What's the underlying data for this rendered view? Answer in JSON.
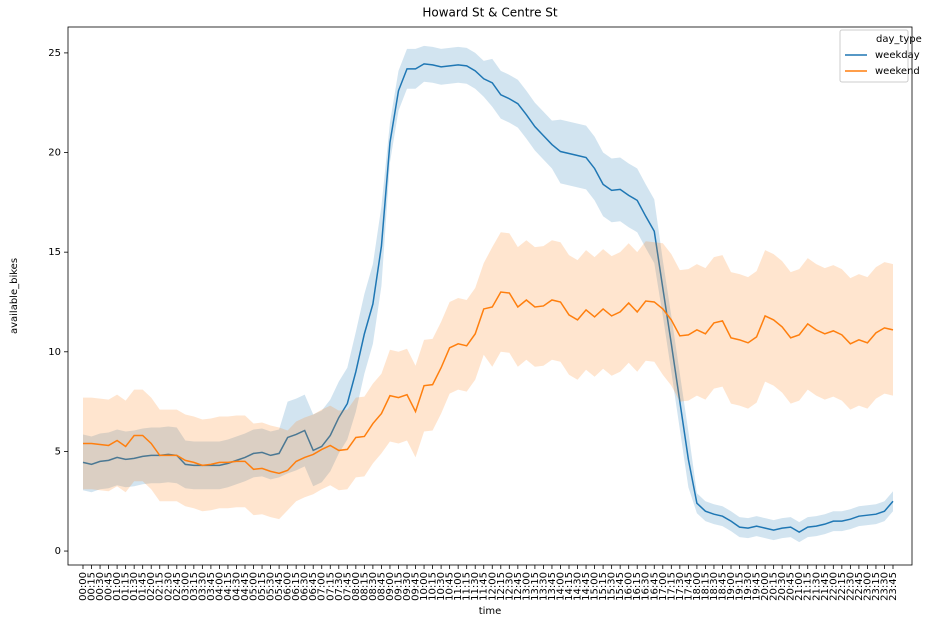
{
  "chart_data": {
    "type": "line",
    "title": "Howard St & Centre St",
    "x_label": "time",
    "y_label": "available_bikes",
    "legend_title": "day_type",
    "legend": "upper right",
    "categories": [
      "00:00",
      "00:15",
      "00:30",
      "00:45",
      "01:00",
      "01:15",
      "01:30",
      "01:45",
      "02:00",
      "02:15",
      "02:30",
      "02:45",
      "03:00",
      "03:15",
      "03:30",
      "03:45",
      "04:00",
      "04:15",
      "04:30",
      "04:45",
      "05:00",
      "05:15",
      "05:30",
      "05:45",
      "06:00",
      "06:15",
      "06:30",
      "06:45",
      "07:00",
      "07:15",
      "07:30",
      "07:45",
      "08:00",
      "08:15",
      "08:30",
      "08:45",
      "09:00",
      "09:15",
      "09:30",
      "09:45",
      "10:00",
      "10:15",
      "10:30",
      "10:45",
      "11:00",
      "11:15",
      "11:30",
      "11:45",
      "12:00",
      "12:15",
      "12:30",
      "12:45",
      "13:00",
      "13:15",
      "13:30",
      "13:45",
      "14:00",
      "14:15",
      "14:30",
      "14:45",
      "15:00",
      "15:15",
      "15:30",
      "15:45",
      "16:00",
      "16:15",
      "16:30",
      "16:45",
      "17:00",
      "17:15",
      "17:30",
      "17:45",
      "18:00",
      "18:15",
      "18:30",
      "18:45",
      "19:00",
      "19:15",
      "19:30",
      "19:45",
      "20:00",
      "20:15",
      "20:30",
      "20:45",
      "21:00",
      "21:15",
      "21:30",
      "21:45",
      "22:00",
      "22:15",
      "22:30",
      "22:45",
      "23:00",
      "23:15",
      "23:30",
      "23:45"
    ],
    "series": [
      {
        "name": "weekday",
        "color": "#1f77b4",
        "values": [
          4.45,
          4.35,
          4.5,
          4.55,
          4.7,
          4.6,
          4.65,
          4.75,
          4.8,
          4.8,
          4.85,
          4.8,
          4.35,
          4.3,
          4.3,
          4.3,
          4.3,
          4.4,
          4.55,
          4.7,
          4.9,
          4.95,
          4.8,
          4.9,
          5.7,
          5.85,
          6.05,
          5.05,
          5.25,
          5.8,
          6.7,
          7.4,
          9.0,
          10.9,
          12.4,
          15.3,
          20.5,
          23.1,
          24.2,
          24.2,
          24.45,
          24.4,
          24.3,
          24.35,
          24.4,
          24.35,
          24.1,
          23.7,
          23.5,
          22.9,
          22.7,
          22.45,
          21.9,
          21.3,
          20.85,
          20.4,
          20.05,
          19.95,
          19.85,
          19.75,
          19.2,
          18.4,
          18.1,
          18.15,
          17.85,
          17.6,
          16.8,
          16.05,
          13.2,
          10.4,
          7.5,
          4.6,
          2.4,
          2.0,
          1.85,
          1.75,
          1.5,
          1.2,
          1.15,
          1.25,
          1.15,
          1.05,
          1.15,
          1.2,
          0.95,
          1.2,
          1.25,
          1.35,
          1.5,
          1.5,
          1.6,
          1.75,
          1.8,
          1.85,
          2.0,
          2.5
        ],
        "lower": [
          3.05,
          2.95,
          3.1,
          3.15,
          3.3,
          3.2,
          3.25,
          3.35,
          3.4,
          3.4,
          3.45,
          3.4,
          3.15,
          3.1,
          3.1,
          3.1,
          3.1,
          3.2,
          3.35,
          3.5,
          3.7,
          3.75,
          3.6,
          3.7,
          3.9,
          4.05,
          4.25,
          3.25,
          3.45,
          4.0,
          4.9,
          5.6,
          7.0,
          8.9,
          10.4,
          13.3,
          19.5,
          22.1,
          23.2,
          23.2,
          23.55,
          23.5,
          23.4,
          23.45,
          23.5,
          23.45,
          23.2,
          22.8,
          22.3,
          21.7,
          21.5,
          21.25,
          20.7,
          20.1,
          19.65,
          19.2,
          18.45,
          18.35,
          18.25,
          18.15,
          17.6,
          16.8,
          16.5,
          16.55,
          16.25,
          16.0,
          15.2,
          14.45,
          11.8,
          9.0,
          6.1,
          3.2,
          1.9,
          1.5,
          1.35,
          1.25,
          1.0,
          0.7,
          0.65,
          0.75,
          0.65,
          0.55,
          0.65,
          0.7,
          0.45,
          0.7,
          0.75,
          0.85,
          1.0,
          1.0,
          1.1,
          1.25,
          1.3,
          1.35,
          1.5,
          2.0
        ],
        "upper": [
          5.85,
          5.75,
          5.9,
          5.95,
          6.1,
          6.0,
          6.05,
          6.15,
          6.2,
          6.2,
          6.25,
          6.2,
          5.55,
          5.5,
          5.5,
          5.5,
          5.5,
          5.6,
          5.75,
          5.9,
          6.1,
          6.15,
          6.0,
          6.1,
          7.5,
          7.65,
          7.85,
          6.85,
          7.05,
          7.6,
          8.5,
          9.2,
          11.0,
          12.9,
          14.4,
          17.3,
          21.5,
          24.1,
          25.2,
          25.2,
          25.35,
          25.3,
          25.2,
          25.25,
          25.3,
          25.25,
          25.0,
          24.6,
          24.7,
          24.1,
          23.9,
          23.65,
          23.1,
          22.5,
          22.05,
          21.6,
          21.65,
          21.55,
          21.45,
          21.35,
          20.8,
          20.0,
          19.7,
          19.75,
          19.45,
          19.2,
          18.4,
          17.65,
          14.6,
          11.8,
          8.9,
          6.0,
          2.9,
          2.5,
          2.35,
          2.25,
          2.0,
          1.7,
          1.65,
          1.75,
          1.65,
          1.55,
          1.65,
          1.7,
          1.45,
          1.7,
          1.75,
          1.85,
          2.0,
          2.0,
          2.1,
          2.25,
          2.3,
          2.35,
          2.5,
          3.0
        ]
      },
      {
        "name": "weekend",
        "color": "#ff7f0e",
        "values": [
          5.4,
          5.4,
          5.35,
          5.3,
          5.55,
          5.25,
          5.8,
          5.8,
          5.4,
          4.8,
          4.8,
          4.8,
          4.55,
          4.45,
          4.3,
          4.35,
          4.45,
          4.45,
          4.5,
          4.5,
          4.1,
          4.15,
          4.0,
          3.9,
          4.05,
          4.5,
          4.7,
          4.85,
          5.1,
          5.3,
          5.05,
          5.1,
          5.7,
          5.75,
          6.4,
          6.9,
          7.8,
          7.7,
          7.85,
          7.0,
          8.3,
          8.35,
          9.2,
          10.2,
          10.4,
          10.3,
          10.9,
          12.15,
          12.25,
          13.0,
          12.95,
          12.25,
          12.6,
          12.25,
          12.3,
          12.6,
          12.5,
          11.85,
          11.6,
          12.1,
          11.75,
          12.15,
          11.8,
          12.0,
          12.45,
          12.0,
          12.55,
          12.5,
          12.15,
          11.6,
          10.8,
          10.85,
          11.1,
          10.9,
          11.45,
          11.55,
          10.7,
          10.6,
          10.45,
          10.75,
          11.8,
          11.6,
          11.25,
          10.7,
          10.85,
          11.4,
          11.1,
          10.9,
          11.05,
          10.85,
          10.4,
          10.6,
          10.45,
          10.95,
          11.2,
          11.1
        ],
        "lower": [
          3.1,
          3.1,
          3.05,
          3.0,
          3.25,
          2.95,
          3.5,
          3.5,
          3.1,
          2.5,
          2.5,
          2.5,
          2.25,
          2.15,
          2.0,
          2.05,
          2.15,
          2.15,
          2.2,
          2.2,
          1.8,
          1.85,
          1.7,
          1.6,
          2.05,
          2.5,
          2.7,
          2.85,
          3.1,
          3.3,
          3.05,
          3.1,
          3.7,
          3.75,
          4.4,
          4.9,
          5.5,
          5.4,
          5.55,
          4.7,
          6.0,
          6.05,
          6.9,
          7.9,
          8.1,
          8.0,
          8.6,
          9.85,
          9.25,
          10.0,
          9.95,
          9.25,
          9.6,
          9.25,
          9.3,
          9.6,
          9.5,
          8.85,
          8.6,
          9.1,
          8.75,
          9.15,
          8.8,
          9.0,
          9.45,
          9.0,
          9.55,
          9.5,
          8.85,
          8.3,
          7.5,
          7.55,
          7.8,
          7.6,
          8.15,
          8.25,
          7.4,
          7.3,
          7.15,
          7.45,
          8.5,
          8.3,
          7.95,
          7.4,
          7.55,
          8.1,
          7.8,
          7.6,
          7.75,
          7.55,
          7.1,
          7.3,
          7.15,
          7.65,
          7.9,
          7.8
        ],
        "upper": [
          7.7,
          7.7,
          7.65,
          7.6,
          7.85,
          7.55,
          8.1,
          8.1,
          7.7,
          7.1,
          7.1,
          7.1,
          6.85,
          6.75,
          6.6,
          6.65,
          6.75,
          6.75,
          6.8,
          6.8,
          6.4,
          6.45,
          6.3,
          6.2,
          6.05,
          6.5,
          6.7,
          6.85,
          7.1,
          7.3,
          7.05,
          7.1,
          7.7,
          7.75,
          8.4,
          8.9,
          10.1,
          10.0,
          10.15,
          9.3,
          10.6,
          10.65,
          11.5,
          12.5,
          12.7,
          12.6,
          13.2,
          14.45,
          15.25,
          16.0,
          15.95,
          15.25,
          15.6,
          15.25,
          15.3,
          15.6,
          15.5,
          14.85,
          14.6,
          15.1,
          14.75,
          15.15,
          14.8,
          15.0,
          15.45,
          15.0,
          15.55,
          15.5,
          15.45,
          14.9,
          14.1,
          14.15,
          14.4,
          14.2,
          14.75,
          14.85,
          14.0,
          13.9,
          13.75,
          14.05,
          15.1,
          14.9,
          14.55,
          14.0,
          14.15,
          14.7,
          14.4,
          14.2,
          14.35,
          14.15,
          13.7,
          13.9,
          13.75,
          14.25,
          14.5,
          14.4
        ]
      }
    ],
    "ylim": [
      -0.7,
      26.3
    ],
    "yticks": [
      0,
      5,
      10,
      15,
      20,
      25
    ],
    "grid": false,
    "band_opacity": 0.2
  }
}
